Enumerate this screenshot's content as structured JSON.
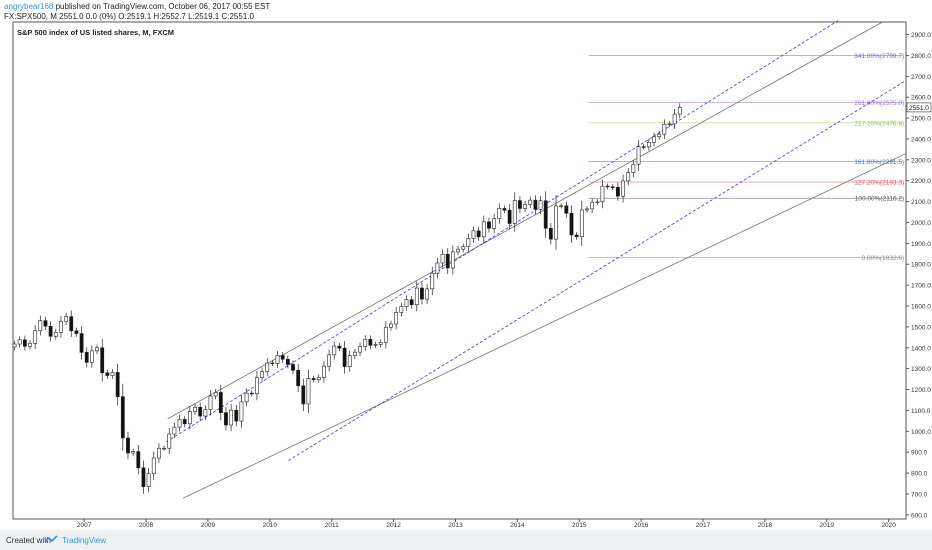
{
  "header": {
    "user": "angrybear168",
    "published": " published on TradingView.com, October 06, 2017 00:55 EST",
    "ohlc": "FX:SPX500, M  2551.0 0.0 (0%)  O:2519.1  H:2552.7  L:2519.1  C:2551.0"
  },
  "footer": {
    "created_with": "Created with",
    "brand": "TradingView"
  },
  "chart_data": {
    "type": "candlestick",
    "title": "S&P 500 index of US listed shares, M, FXCM",
    "xlabel": "",
    "ylabel": "",
    "x_ticks": [
      "2007",
      "2008",
      "2009",
      "2010",
      "2011",
      "2012",
      "2013",
      "2014",
      "2015",
      "2016",
      "2017",
      "2018",
      "2019",
      "2020"
    ],
    "y_ticks": [
      600,
      700,
      800,
      900,
      1000,
      1100,
      1200,
      1300,
      1400,
      1500,
      1600,
      1700,
      1800,
      1900,
      2000,
      2100,
      2200,
      2300,
      2400,
      2500,
      2600,
      2700,
      2800,
      2900
    ],
    "ylim": [
      580,
      2960
    ],
    "xlim": [
      2006.35,
      2020.78
    ],
    "last_price": {
      "value": 2551.0,
      "label": "2551.0"
    },
    "fibonacci": [
      {
        "ratio": "0.00%",
        "price": 1832.6,
        "label": "0.00%(1832.6)",
        "color": "#8a8a8a"
      },
      {
        "ratio": "100.00%",
        "price": 2116.2,
        "label": "100.00%(2116.2)",
        "color": "#555555"
      },
      {
        "ratio": "127.20%",
        "price": 2193.3,
        "label": "127.20%(2193.3)",
        "color": "#e0505a"
      },
      {
        "ratio": "161.80%",
        "price": 2291.5,
        "label": "161.80%(2291.5)",
        "color": "#4a7ab8"
      },
      {
        "ratio": "227.20%",
        "price": 2476.9,
        "label": "227.20%(2476.9)",
        "color": "#8bc34a"
      },
      {
        "ratio": "261.80%",
        "price": 2575.0,
        "label": "261.80%(2575.0)",
        "color": "#9c6fd6"
      },
      {
        "ratio": "341.00%",
        "price": 2799.7,
        "label": "341.00%(2799.7)",
        "color": "#7b5fd6"
      }
    ],
    "channels": [
      {
        "name": "",
        "style": "solid",
        "color": "#6a7a6a",
        "points": [
          [
            2008.85,
            1060
          ],
          [
            2020.4,
            2960
          ]
        ]
      },
      {
        "name": "",
        "style": "solid",
        "color": "#6a7a6a",
        "points": [
          [
            2009.1,
            680
          ],
          [
            2020.78,
            2330
          ]
        ]
      },
      {
        "name": "",
        "style": "dashed",
        "color": "#3a3ad6",
        "points": [
          [
            2008.83,
            950
          ],
          [
            2019.7,
            2970
          ]
        ]
      },
      {
        "name": "",
        "style": "dashed",
        "color": "#3a3ad6",
        "points": [
          [
            2010.8,
            860
          ],
          [
            2020.78,
            2680
          ]
        ]
      }
    ],
    "closes": [
      1418,
      1438,
      1407,
      1421,
      1482,
      1530,
      1503,
      1455,
      1474,
      1527,
      1549,
      1481,
      1468,
      1378,
      1330,
      1385,
      1400,
      1280,
      1267,
      1282,
      1166,
      968,
      896,
      903,
      825,
      735,
      797,
      872,
      919,
      919,
      987,
      1020,
      1057,
      1036,
      1095,
      1115,
      1073,
      1104,
      1169,
      1186,
      1089,
      1030,
      1101,
      1049,
      1141,
      1183,
      1180,
      1257,
      1286,
      1327,
      1325,
      1363,
      1345,
      1320,
      1292,
      1218,
      1131,
      1253,
      1247,
      1258,
      1312,
      1366,
      1408,
      1398,
      1310,
      1362,
      1379,
      1406,
      1440,
      1412,
      1416,
      1426,
      1498,
      1514,
      1569,
      1597,
      1630,
      1606,
      1686,
      1633,
      1682,
      1757,
      1806,
      1848,
      1782,
      1859,
      1872,
      1884,
      1924,
      1960,
      1931,
      2003,
      1972,
      2018,
      2067,
      2059,
      1995,
      2105,
      2067,
      2086,
      2107,
      2063,
      2104,
      1972,
      1920,
      2079,
      2080,
      2044,
      1940,
      1932,
      2060,
      2065,
      2097,
      2099,
      2174,
      2171,
      2168,
      2126,
      2199,
      2239,
      2279,
      2363,
      2362,
      2384,
      2411,
      2423,
      2470,
      2472,
      2519,
      2551
    ],
    "candle_start": 2006.333
  }
}
